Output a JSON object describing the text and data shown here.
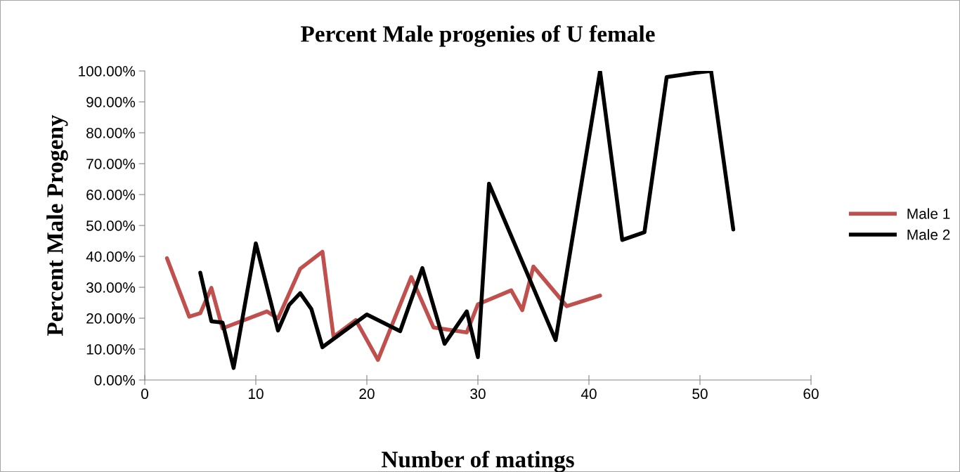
{
  "chart_data": {
    "type": "line",
    "title": "Percent Male progenies of U female",
    "xlabel": "Number of matings",
    "ylabel": "Percent Male Progeny",
    "xlim": [
      0,
      60
    ],
    "xticks": [
      0,
      10,
      20,
      30,
      40,
      50,
      60
    ],
    "ylim": [
      0,
      100
    ],
    "yticks": [
      {
        "value": 0,
        "label": "0.00%"
      },
      {
        "value": 10,
        "label": "10.00%"
      },
      {
        "value": 20,
        "label": "20.00%"
      },
      {
        "value": 30,
        "label": "30.00%"
      },
      {
        "value": 40,
        "label": "40.00%"
      },
      {
        "value": 50,
        "label": "50.00%"
      },
      {
        "value": 60,
        "label": "60.00%"
      },
      {
        "value": 70,
        "label": "70.00%"
      },
      {
        "value": 80,
        "label": "80.00%"
      },
      {
        "value": 90,
        "label": "90.00%"
      },
      {
        "value": 100,
        "label": "100.00%"
      }
    ],
    "grid": false,
    "legend": "right",
    "marker": "none",
    "line_style": "solid",
    "series": [
      {
        "name": "Male 1",
        "color": "#c0504d",
        "x": [
          2,
          4,
          5,
          6,
          7,
          11,
          12,
          14,
          16,
          17,
          19,
          21,
          24,
          26,
          29,
          30,
          33,
          34,
          35,
          38,
          41
        ],
        "values": [
          39.4,
          20.5,
          21.6,
          29.8,
          16.7,
          22.2,
          19.9,
          36,
          41.5,
          14,
          19.4,
          6.5,
          33.3,
          17,
          15.4,
          24.5,
          29,
          22.6,
          36.7,
          23.9,
          27.3
        ]
      },
      {
        "name": "Male 2",
        "color": "#000000",
        "x": [
          5,
          6,
          7,
          8,
          10,
          12,
          13,
          14,
          15,
          16,
          20,
          23,
          25,
          27,
          29,
          30,
          31,
          37,
          41,
          43,
          45,
          47,
          50,
          51,
          53
        ],
        "values": [
          34.7,
          19,
          18.6,
          3.9,
          44.2,
          16,
          24.3,
          28.1,
          23,
          10.6,
          21.2,
          15.8,
          36.2,
          11.7,
          22.2,
          7.4,
          63.5,
          12.9,
          100,
          45.3,
          47.8,
          98,
          99.6,
          100,
          48.7
        ]
      }
    ]
  }
}
